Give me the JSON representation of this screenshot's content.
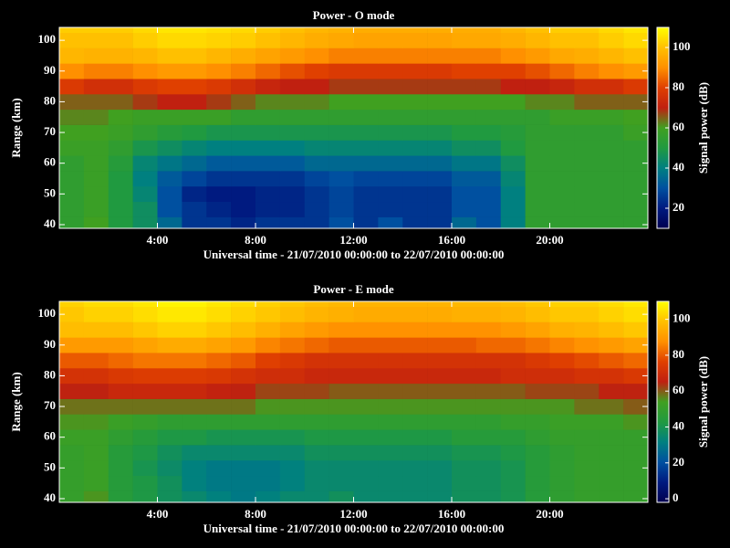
{
  "chart_data": [
    {
      "type": "heatmap",
      "title": "Power - O mode",
      "xlabel": "Universal time - 21/07/2010 00:00:00 to 22/07/2010 00:00:00",
      "ylabel": "Range (km)",
      "colorbar_label": "Signal power (dB)",
      "x": [
        0.5,
        1.5,
        2.5,
        3.5,
        4.5,
        5.5,
        6.5,
        7.5,
        8.5,
        9.5,
        10.5,
        11.5,
        12.5,
        13.5,
        14.5,
        15.5,
        16.5,
        17.5,
        18.5,
        19.5,
        20.5,
        21.5,
        22.5,
        23.5
      ],
      "y": [
        40,
        45,
        50,
        55,
        60,
        65,
        70,
        75,
        80,
        85,
        90,
        95,
        100,
        105
      ],
      "z": [
        [
          55,
          60,
          50,
          45,
          35,
          25,
          25,
          22,
          25,
          25,
          25,
          30,
          25,
          30,
          25,
          25,
          35,
          30,
          40,
          55,
          55,
          55,
          55,
          55
        ],
        [
          55,
          58,
          50,
          45,
          30,
          25,
          22,
          20,
          22,
          22,
          25,
          28,
          25,
          25,
          25,
          25,
          30,
          30,
          40,
          55,
          55,
          55,
          55,
          55
        ],
        [
          55,
          58,
          50,
          42,
          30,
          22,
          20,
          20,
          22,
          22,
          25,
          28,
          25,
          25,
          25,
          25,
          30,
          30,
          40,
          55,
          55,
          55,
          55,
          55
        ],
        [
          55,
          58,
          50,
          40,
          32,
          28,
          25,
          25,
          25,
          25,
          28,
          30,
          28,
          28,
          28,
          28,
          32,
          32,
          42,
          55,
          55,
          55,
          55,
          55
        ],
        [
          55,
          58,
          52,
          42,
          38,
          35,
          32,
          32,
          32,
          32,
          35,
          35,
          35,
          35,
          35,
          35,
          38,
          38,
          45,
          55,
          55,
          55,
          55,
          55
        ],
        [
          58,
          58,
          55,
          48,
          45,
          42,
          40,
          40,
          40,
          40,
          42,
          42,
          42,
          42,
          42,
          42,
          45,
          45,
          50,
          55,
          55,
          55,
          55,
          55
        ],
        [
          60,
          60,
          58,
          55,
          52,
          50,
          48,
          48,
          48,
          48,
          48,
          48,
          48,
          48,
          48,
          48,
          50,
          50,
          52,
          55,
          55,
          55,
          55,
          58
        ],
        [
          62,
          62,
          60,
          58,
          58,
          58,
          58,
          55,
          55,
          55,
          55,
          55,
          55,
          55,
          55,
          55,
          55,
          55,
          55,
          55,
          58,
          58,
          58,
          60
        ],
        [
          65,
          65,
          65,
          68,
          70,
          70,
          68,
          65,
          62,
          62,
          62,
          60,
          60,
          60,
          60,
          60,
          60,
          60,
          60,
          62,
          62,
          65,
          65,
          65
        ],
        [
          78,
          75,
          75,
          78,
          80,
          80,
          78,
          75,
          72,
          70,
          70,
          68,
          68,
          68,
          68,
          68,
          68,
          68,
          70,
          70,
          72,
          75,
          75,
          78
        ],
        [
          90,
          88,
          88,
          90,
          92,
          92,
          90,
          88,
          85,
          82,
          80,
          78,
          78,
          78,
          78,
          78,
          80,
          80,
          80,
          82,
          85,
          88,
          90,
          92
        ],
        [
          98,
          97,
          97,
          98,
          100,
          100,
          98,
          96,
          94,
          92,
          90,
          88,
          88,
          88,
          88,
          88,
          88,
          88,
          90,
          92,
          95,
          96,
          98,
          100
        ],
        [
          100,
          100,
          100,
          102,
          104,
          104,
          103,
          102,
          100,
          98,
          96,
          95,
          94,
          94,
          94,
          94,
          95,
          95,
          96,
          98,
          100,
          100,
          102,
          104
        ],
        [
          102,
          102,
          102,
          104,
          106,
          106,
          105,
          104,
          102,
          100,
          98,
          97,
          96,
          96,
          96,
          96,
          96,
          96,
          98,
          100,
          102,
          102,
          104,
          106
        ]
      ],
      "xlim": [
        0,
        24
      ],
      "ylim": [
        38.8,
        104.2
      ],
      "zlim": [
        10,
        110
      ],
      "xticks": [
        {
          "value": 4,
          "label": "4:00"
        },
        {
          "value": 8,
          "label": "8:00"
        },
        {
          "value": 12,
          "label": "12:00"
        },
        {
          "value": 16,
          "label": "16:00"
        },
        {
          "value": 20,
          "label": "20:00"
        }
      ],
      "yticks": [
        40,
        50,
        60,
        70,
        80,
        90,
        100
      ],
      "zticks": [
        20,
        40,
        60,
        80,
        100
      ],
      "colorscale": [
        "#000050",
        "#001a80",
        "#0050a0",
        "#008080",
        "#209a40",
        "#40a020",
        "#c02010",
        "#e04000",
        "#ff9000",
        "#ffc000",
        "#ffff00"
      ]
    },
    {
      "type": "heatmap",
      "title": "Power - E mode",
      "xlabel": "Universal time - 21/07/2010 00:00:00 to 22/07/2010 00:00:00",
      "ylabel": "Range (km)",
      "colorbar_label": "Signal power (dB)",
      "x": [
        0.5,
        1.5,
        2.5,
        3.5,
        4.5,
        5.5,
        6.5,
        7.5,
        8.5,
        9.5,
        10.5,
        11.5,
        12.5,
        13.5,
        14.5,
        15.5,
        16.5,
        17.5,
        18.5,
        19.5,
        20.5,
        21.5,
        22.5,
        23.5
      ],
      "y": [
        40,
        45,
        50,
        55,
        60,
        65,
        70,
        75,
        80,
        85,
        90,
        95,
        100,
        105
      ],
      "z": [
        [
          50,
          55,
          45,
          42,
          38,
          35,
          32,
          30,
          32,
          35,
          35,
          38,
          35,
          35,
          35,
          35,
          38,
          38,
          40,
          45,
          48,
          50,
          50,
          50
        ],
        [
          50,
          52,
          45,
          42,
          38,
          32,
          30,
          30,
          30,
          32,
          35,
          35,
          35,
          35,
          35,
          35,
          38,
          38,
          40,
          45,
          48,
          50,
          50,
          50
        ],
        [
          50,
          52,
          45,
          40,
          36,
          32,
          30,
          30,
          30,
          32,
          35,
          35,
          35,
          35,
          35,
          35,
          38,
          38,
          40,
          45,
          48,
          50,
          50,
          50
        ],
        [
          50,
          52,
          45,
          42,
          38,
          35,
          35,
          35,
          35,
          35,
          38,
          38,
          38,
          38,
          38,
          38,
          40,
          40,
          42,
          45,
          48,
          50,
          50,
          50
        ],
        [
          52,
          52,
          48,
          45,
          42,
          42,
          40,
          40,
          40,
          40,
          42,
          42,
          42,
          42,
          42,
          42,
          45,
          45,
          45,
          48,
          50,
          50,
          50,
          50
        ],
        [
          55,
          55,
          52,
          50,
          48,
          48,
          48,
          48,
          48,
          48,
          48,
          48,
          48,
          48,
          48,
          48,
          48,
          48,
          50,
          50,
          52,
          52,
          52,
          55
        ],
        [
          58,
          58,
          58,
          58,
          58,
          58,
          58,
          58,
          55,
          55,
          55,
          55,
          55,
          55,
          55,
          55,
          55,
          55,
          55,
          55,
          55,
          58,
          58,
          60
        ],
        [
          65,
          65,
          68,
          68,
          68,
          68,
          66,
          65,
          62,
          62,
          62,
          60,
          60,
          60,
          60,
          60,
          60,
          60,
          60,
          62,
          62,
          62,
          65,
          65
        ],
        [
          72,
          72,
          74,
          75,
          75,
          75,
          74,
          72,
          70,
          70,
          68,
          68,
          68,
          68,
          68,
          68,
          68,
          68,
          70,
          70,
          70,
          72,
          72,
          74
        ],
        [
          80,
          80,
          82,
          84,
          84,
          84,
          82,
          80,
          76,
          74,
          72,
          72,
          72,
          72,
          72,
          72,
          72,
          72,
          72,
          74,
          76,
          78,
          80,
          82
        ],
        [
          90,
          90,
          90,
          92,
          94,
          94,
          92,
          90,
          86,
          84,
          82,
          80,
          80,
          80,
          80,
          80,
          80,
          82,
          82,
          84,
          86,
          88,
          90,
          92
        ],
        [
          98,
          98,
          98,
          100,
          102,
          102,
          100,
          98,
          95,
          92,
          90,
          88,
          88,
          88,
          88,
          88,
          88,
          88,
          90,
          92,
          95,
          96,
          98,
          100
        ],
        [
          100,
          102,
          102,
          104,
          106,
          106,
          104,
          102,
          100,
          98,
          96,
          95,
          94,
          94,
          94,
          94,
          95,
          95,
          96,
          98,
          100,
          100,
          102,
          104
        ],
        [
          102,
          104,
          104,
          106,
          108,
          108,
          106,
          104,
          102,
          100,
          98,
          97,
          96,
          96,
          96,
          96,
          97,
          97,
          98,
          100,
          102,
          102,
          104,
          106
        ]
      ],
      "xlim": [
        0,
        24
      ],
      "ylim": [
        38.8,
        104.2
      ],
      "zlim": [
        -2,
        110
      ],
      "xticks": [
        {
          "value": 4,
          "label": "4:00"
        },
        {
          "value": 8,
          "label": "8:00"
        },
        {
          "value": 12,
          "label": "12:00"
        },
        {
          "value": 16,
          "label": "16:00"
        },
        {
          "value": 20,
          "label": "20:00"
        }
      ],
      "yticks": [
        40,
        50,
        60,
        70,
        80,
        90,
        100
      ],
      "zticks": [
        0,
        20,
        40,
        60,
        80,
        100
      ],
      "colorscale": [
        "#000050",
        "#001a80",
        "#0050a0",
        "#008080",
        "#209a40",
        "#40a020",
        "#c02010",
        "#e04000",
        "#ff9000",
        "#ffc000",
        "#ffff00"
      ]
    }
  ]
}
